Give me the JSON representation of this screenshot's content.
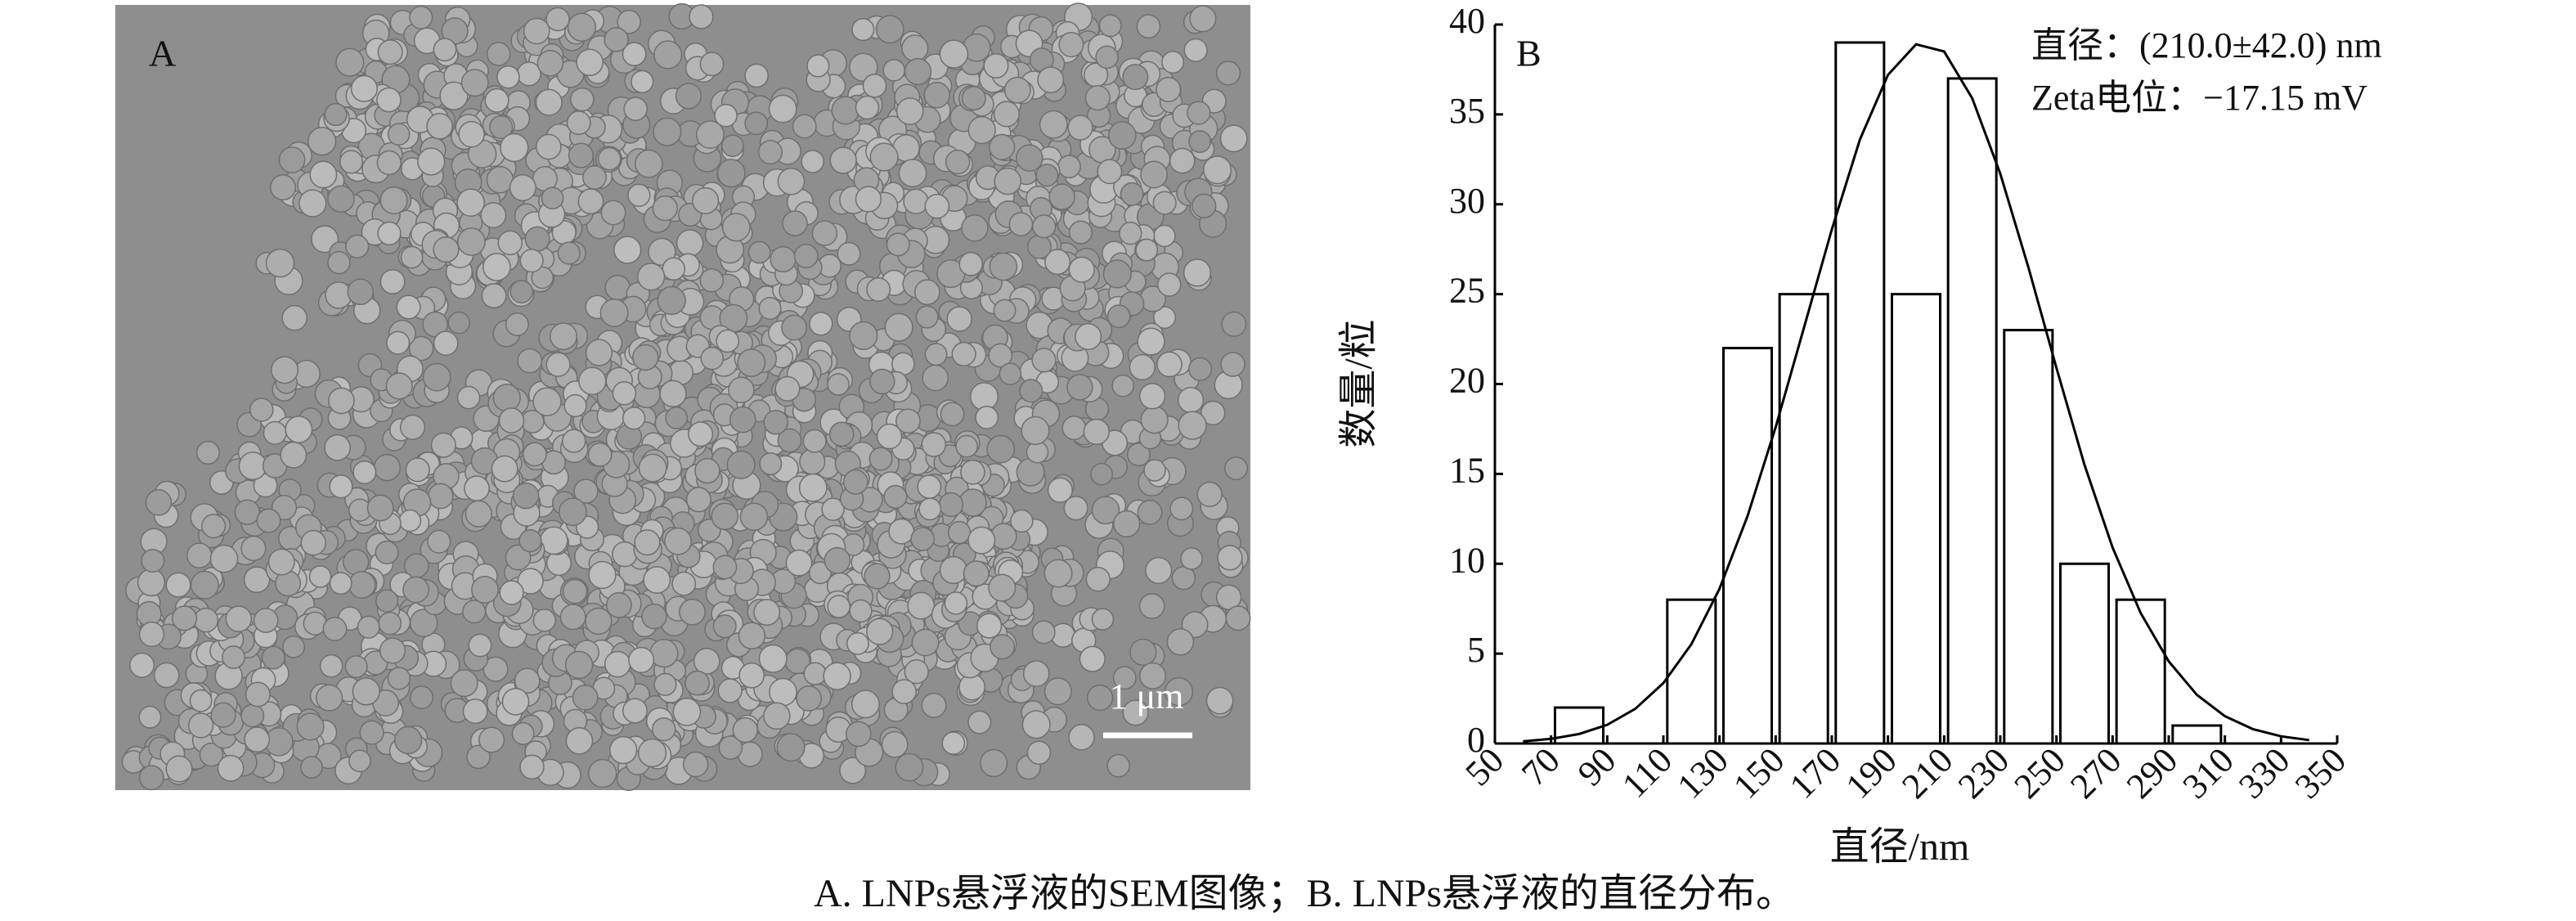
{
  "panel_a": {
    "label": "A",
    "scale_bar": "1 μm"
  },
  "chart_data": {
    "type": "histogram",
    "label": "B",
    "annotations": [
      "直径：(210.0±42.0) nm",
      "Zeta电位：−17.15 mV"
    ],
    "xlabel": "直径/nm",
    "ylabel": "数量/粒",
    "bins": [
      70,
      90,
      110,
      130,
      150,
      170,
      190,
      210,
      230,
      250,
      270,
      290,
      310
    ],
    "values": [
      2,
      0,
      8,
      22,
      25,
      39,
      25,
      37,
      23,
      10,
      8,
      1
    ],
    "curve": {
      "x": [
        60,
        70,
        80,
        90,
        100,
        110,
        120,
        130,
        140,
        150,
        160,
        170,
        180,
        190,
        200,
        210,
        220,
        230,
        240,
        250,
        260,
        270,
        280,
        290,
        300,
        310,
        320,
        330,
        340
      ],
      "values": [
        0.12,
        0.26,
        0.53,
        1.04,
        1.93,
        3.36,
        5.53,
        8.61,
        12.66,
        17.6,
        23.09,
        28.6,
        33.6,
        37.2,
        38.9,
        38.5,
        35.9,
        31.7,
        26.5,
        20.9,
        15.5,
        10.9,
        7.26,
        4.57,
        2.71,
        1.52,
        0.8,
        0.4,
        0.19
      ]
    },
    "xlim": [
      50,
      350
    ],
    "ylim": [
      0,
      40
    ],
    "xticks": [
      50,
      70,
      90,
      110,
      130,
      150,
      170,
      190,
      210,
      230,
      250,
      270,
      290,
      310,
      330,
      350
    ],
    "yticks": [
      0,
      5,
      10,
      15,
      20,
      25,
      30,
      35,
      40
    ]
  },
  "caption": "A. LNPs悬浮液的SEM图像；B. LNPs悬浮液的直径分布。"
}
